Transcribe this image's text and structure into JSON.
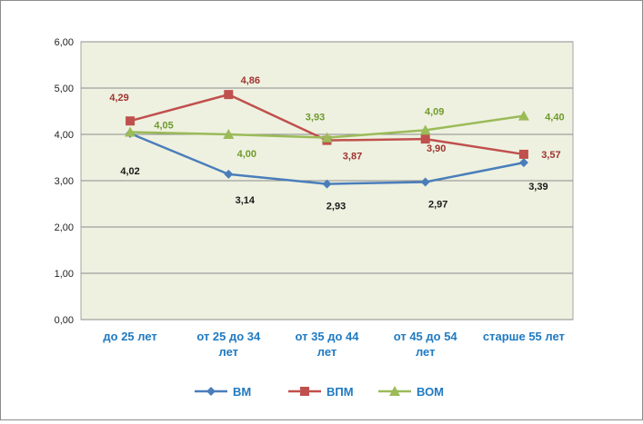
{
  "chart_data": {
    "type": "line",
    "categories": [
      [
        "до 25 лет"
      ],
      [
        "от 25 до 34",
        "лет"
      ],
      [
        "от 35 до 44",
        "лет"
      ],
      [
        "от 45 до 54",
        "лет"
      ],
      [
        "старше 55 лет"
      ]
    ],
    "ylim": [
      0,
      6
    ],
    "yticks": [
      "0,00",
      "1,00",
      "2,00",
      "3,00",
      "4,00",
      "5,00",
      "6,00"
    ],
    "grid": true,
    "legend_position": "bottom",
    "plot_background": "#eef1e0",
    "category_label_color": "#1f7ac2",
    "series": [
      {
        "name": "ВМ",
        "color": "#4a7ebb",
        "marker": "diamond",
        "label_color": "#1a1a1a",
        "values": [
          4.02,
          3.14,
          2.93,
          2.97,
          3.39
        ],
        "labels": [
          "4,02",
          "3,14",
          "2,93",
          "2,97",
          "3,39"
        ]
      },
      {
        "name": "ВПМ",
        "color": "#c0504d",
        "marker": "square",
        "label_color": "#a0332f",
        "values": [
          4.29,
          4.86,
          3.87,
          3.9,
          3.57
        ],
        "labels": [
          "4,29",
          "4,86",
          "3,87",
          "3,90",
          "3,57"
        ]
      },
      {
        "name": "ВОМ",
        "color": "#9bbb59",
        "marker": "triangle",
        "label_color": "#6f9a2d",
        "values": [
          4.05,
          4.0,
          3.93,
          4.09,
          4.4
        ],
        "labels": [
          "4,05",
          "4,00",
          "3,93",
          "4,09",
          "4,40"
        ]
      }
    ]
  }
}
